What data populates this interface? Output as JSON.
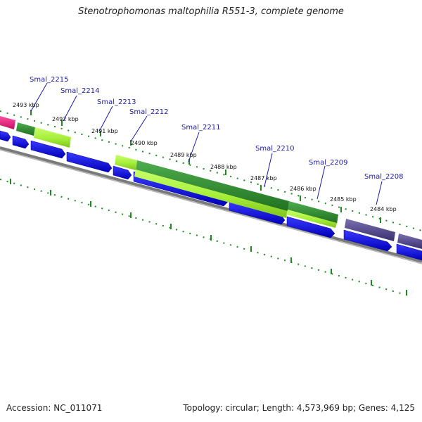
{
  "title": "Stenotrophomonas maltophilia R551-3, complete genome",
  "footer": {
    "accession": "Accession: NC_011071",
    "topology": "Topology: circular; Length: 4,573,969 bp; Genes: 4,125"
  },
  "colors": {
    "gene_label": "#1a1aa8",
    "cds_forward": "#0000ee",
    "backbone": "#7a7a7a",
    "tick": "#1f8a1f",
    "gene_magenta": "#e8197a",
    "gene_darkgreen": "#2f8f2f",
    "gene_lightgreen": "#a6ee3a",
    "gene_purple": "#4b3f82"
  },
  "ticks": [
    {
      "label": "2493 kbp"
    },
    {
      "label": "2492 kbp"
    },
    {
      "label": "2491 kbp"
    },
    {
      "label": "2490 kbp"
    },
    {
      "label": "2489 kbp"
    },
    {
      "label": "2488 kbp"
    },
    {
      "label": "2487 kbp"
    },
    {
      "label": "2486 kbp"
    },
    {
      "label": "2485 kbp"
    },
    {
      "label": "2484 kbp"
    }
  ],
  "genes": [
    {
      "name": "Smal_2215"
    },
    {
      "name": "Smal_2214"
    },
    {
      "name": "Smal_2213"
    },
    {
      "name": "Smal_2212"
    },
    {
      "name": "Smal_2211"
    },
    {
      "name": "Smal_2210"
    },
    {
      "name": "Smal_2209"
    },
    {
      "name": "Smal_2208"
    }
  ]
}
